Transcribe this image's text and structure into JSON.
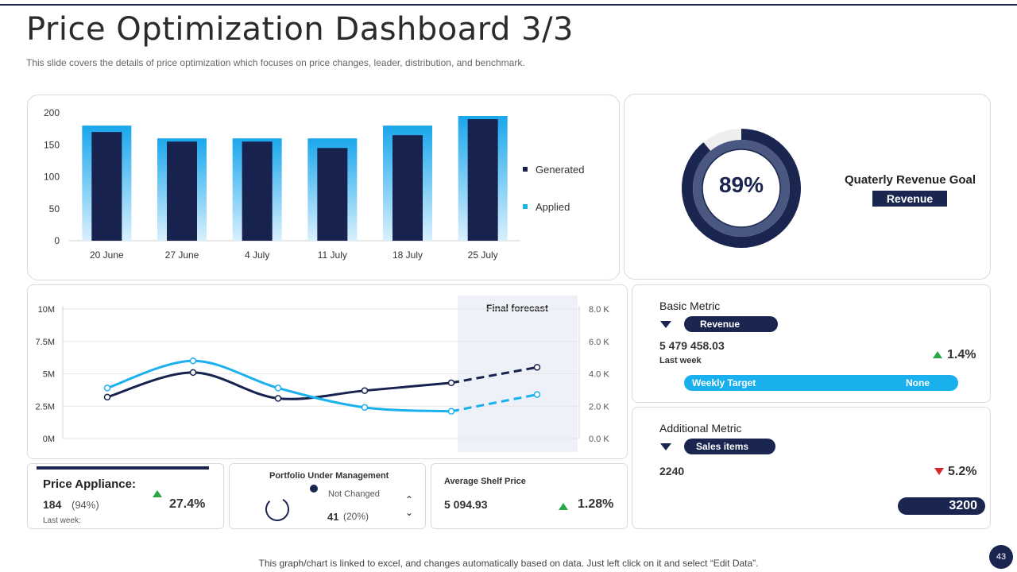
{
  "header": {
    "title": "Price Optimization Dashboard 3/3",
    "subtitle": "This slide covers the details of price optimization which focuses on price changes, leader, distribution, and benchmark."
  },
  "colors": {
    "navy": "#1a2550",
    "light_blue": "#1ab0ee",
    "green": "#2aa845",
    "red": "#d92626"
  },
  "chart_data": [
    {
      "type": "bar",
      "categories": [
        "20 June",
        "27 June",
        "4 July",
        "11 July",
        "18 July",
        "25 July"
      ],
      "series": [
        {
          "name": "Applied",
          "values": [
            180,
            160,
            160,
            160,
            180,
            195
          ]
        },
        {
          "name": "Generated",
          "values": [
            170,
            155,
            155,
            145,
            165,
            190
          ]
        }
      ],
      "ylim": [
        0,
        200
      ],
      "yticks": [
        "0",
        "50",
        "100",
        "150",
        "200"
      ],
      "legend": "right"
    },
    {
      "type": "line",
      "x": [
        1,
        2,
        3,
        4,
        5,
        6
      ],
      "series": [
        {
          "values": [
            3.2,
            5.1,
            3.1,
            3.7,
            4.3,
            5.5
          ]
        },
        {
          "values": [
            3.9,
            6.0,
            3.9,
            2.4,
            2.1,
            3.4
          ]
        }
      ],
      "ylim": [
        0,
        10
      ],
      "yticks_left": [
        "0M",
        "2.5M",
        "5M",
        "7.5M",
        "10M"
      ],
      "yticks_right": [
        "0.0 K",
        "2.0 K",
        "4.0 K",
        "6.0 K",
        "8.0 K"
      ],
      "forecast_label": "Final forecast"
    }
  ],
  "revenue_goal": {
    "percent": "89%",
    "value": 0.89,
    "title": "Quaterly Revenue Goal",
    "badge": "Revenue"
  },
  "basic_metric": {
    "title": "Basic Metric",
    "pill": "Revenue",
    "value": "5 479 458.03",
    "period": "Last week",
    "change": "1.4%",
    "bar_label": "Weekly Target",
    "bar_value": "None"
  },
  "additional_metric": {
    "title": "Additional Metric",
    "pill": "Sales items",
    "value": "2240",
    "change": "5.2%",
    "target": "3200"
  },
  "price_appliance": {
    "title": "Price Appliance:",
    "count": "184",
    "pct": "(94%)",
    "change": "27.4%",
    "period": "Last week:"
  },
  "portfolio": {
    "title": "Portfolio Under Management",
    "status": "Not Changed",
    "count": "41",
    "pct": "(20%)"
  },
  "shelf_price": {
    "title": "Average Shelf Price",
    "value": "5 094.93",
    "change": "1.28%"
  },
  "footer": {
    "note": "This graph/chart is linked to excel,  and changes automatically based on data. Just left click on it and select “Edit Data”.",
    "page": "43"
  }
}
